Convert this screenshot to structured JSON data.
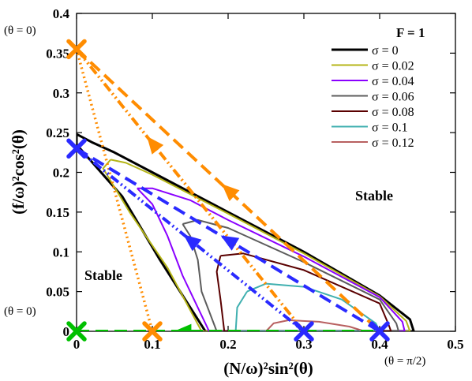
{
  "chart_data": {
    "type": "line",
    "title": "",
    "xlabel": "(N/ω)²sin²(θ)",
    "ylabel": "(f/ω)²cos²(θ)",
    "xlim": [
      0,
      0.5
    ],
    "ylim": [
      0,
      0.4
    ],
    "x_ticks": [
      "0",
      "0.1",
      "0.2",
      "0.3",
      "0.4",
      "0.5"
    ],
    "y_ticks": [
      "0",
      "0.05",
      "0.1",
      "0.15",
      "0.2",
      "0.25",
      "0.3",
      "0.35",
      "0.4"
    ],
    "x_tick_values": [
      0,
      0.1,
      0.2,
      0.3,
      0.4,
      0.5
    ],
    "y_tick_values": [
      0,
      0.05,
      0.1,
      0.15,
      0.2,
      0.25,
      0.3,
      0.35,
      0.4
    ],
    "legend_title": "F = 1",
    "legend_position": "top-right",
    "series": [
      {
        "name": "σ = 0",
        "color": "#000000",
        "points": [
          [
            0,
            0.248
          ],
          [
            0.02,
            0.238
          ],
          [
            0.05,
            0.225
          ],
          [
            0.1,
            0.2
          ],
          [
            0.2,
            0.15
          ],
          [
            0.3,
            0.1
          ],
          [
            0.4,
            0.045
          ],
          [
            0.44,
            0.015
          ],
          [
            0.445,
            0
          ],
          [
            0.17,
            0
          ],
          [
            0.11,
            0.09
          ],
          [
            0.06,
            0.17
          ],
          [
            0,
            0.235
          ],
          [
            0,
            0.248
          ]
        ]
      },
      {
        "name": "σ = 0.02",
        "color": "#b5b518",
        "points": [
          [
            0.045,
            0.216
          ],
          [
            0.065,
            0.212
          ],
          [
            0.1,
            0.197
          ],
          [
            0.2,
            0.148
          ],
          [
            0.3,
            0.098
          ],
          [
            0.4,
            0.044
          ],
          [
            0.435,
            0.013
          ],
          [
            0.44,
            0
          ],
          [
            0.165,
            0
          ],
          [
            0.12,
            0.08
          ],
          [
            0.07,
            0.15
          ],
          [
            0.035,
            0.205
          ],
          [
            0.045,
            0.216
          ]
        ]
      },
      {
        "name": "σ = 0.04",
        "color": "#8a00ff",
        "points": [
          [
            0.08,
            0.18
          ],
          [
            0.1,
            0.18
          ],
          [
            0.15,
            0.165
          ],
          [
            0.2,
            0.14
          ],
          [
            0.3,
            0.094
          ],
          [
            0.4,
            0.043
          ],
          [
            0.43,
            0.012
          ],
          [
            0.433,
            0
          ],
          [
            0.175,
            0
          ],
          [
            0.14,
            0.07
          ],
          [
            0.12,
            0.12
          ],
          [
            0.1,
            0.16
          ],
          [
            0.08,
            0.18
          ]
        ]
      },
      {
        "name": "σ = 0.06",
        "color": "#5c5c5c",
        "points": [
          [
            0.14,
            0.135
          ],
          [
            0.16,
            0.14
          ],
          [
            0.2,
            0.13
          ],
          [
            0.3,
            0.087
          ],
          [
            0.4,
            0.04
          ],
          [
            0.422,
            0.01
          ],
          [
            0.425,
            0
          ],
          [
            0.185,
            0
          ],
          [
            0.165,
            0.05
          ],
          [
            0.16,
            0.09
          ],
          [
            0.15,
            0.12
          ],
          [
            0.14,
            0.135
          ]
        ]
      },
      {
        "name": "σ = 0.08",
        "color": "#5a0000",
        "points": [
          [
            0.19,
            0.095
          ],
          [
            0.22,
            0.098
          ],
          [
            0.3,
            0.077
          ],
          [
            0.4,
            0.035
          ],
          [
            0.412,
            0.008
          ],
          [
            0.415,
            0
          ],
          [
            0.195,
            0
          ],
          [
            0.19,
            0.04
          ],
          [
            0.185,
            0.075
          ],
          [
            0.19,
            0.095
          ]
        ]
      },
      {
        "name": "σ = 0.1",
        "color": "#40b0b0",
        "points": [
          [
            0.225,
            0.05
          ],
          [
            0.25,
            0.06
          ],
          [
            0.3,
            0.056
          ],
          [
            0.35,
            0.04
          ],
          [
            0.395,
            0.01
          ],
          [
            0.4,
            0
          ],
          [
            0.21,
            0
          ],
          [
            0.212,
            0.03
          ],
          [
            0.225,
            0.05
          ]
        ]
      },
      {
        "name": "σ = 0.12",
        "color": "#b86060",
        "points": [
          [
            0.25,
            0
          ],
          [
            0.26,
            0.01
          ],
          [
            0.28,
            0.014
          ],
          [
            0.32,
            0.012
          ],
          [
            0.36,
            0.006
          ],
          [
            0.38,
            0
          ]
        ]
      }
    ],
    "trajectories": [
      {
        "color": "#ff8c00",
        "style": "dashed",
        "points": [
          [
            0,
            0.355
          ],
          [
            0.4,
            0
          ]
        ]
      },
      {
        "color": "#ff8c00",
        "style": "dash-dot-dot",
        "points": [
          [
            0,
            0.355
          ],
          [
            0.3,
            0
          ]
        ]
      },
      {
        "color": "#ff8c00",
        "style": "dotted",
        "points": [
          [
            0,
            0.355
          ],
          [
            0.1,
            0
          ]
        ]
      },
      {
        "color": "#2a2aff",
        "style": "dashed",
        "points": [
          [
            0,
            0.23
          ],
          [
            0.4,
            0
          ]
        ]
      },
      {
        "color": "#2a2aff",
        "style": "dash-dot-dot",
        "points": [
          [
            0,
            0.23
          ],
          [
            0.3,
            0
          ]
        ]
      },
      {
        "color": "#00c000",
        "style": "dashed",
        "points": [
          [
            0,
            0
          ],
          [
            0.4,
            0
          ]
        ]
      }
    ],
    "arrows": [
      {
        "color": "#ff8c00",
        "at": [
          0.2,
          0.178
        ],
        "direction": [
          -0.4,
          0.355
        ]
      },
      {
        "color": "#ff8c00",
        "at": [
          0.1,
          0.237
        ],
        "direction": [
          -0.3,
          0.355
        ]
      },
      {
        "color": "#2a2aff",
        "at": [
          0.2,
          0.115
        ],
        "direction": [
          -0.4,
          0.23
        ]
      },
      {
        "color": "#2a2aff",
        "at": [
          0.15,
          0.115
        ],
        "direction": [
          -0.3,
          0.23
        ]
      },
      {
        "color": "#00c000",
        "at": [
          0.14,
          0
        ],
        "direction": [
          -1,
          0
        ]
      }
    ],
    "markers": [
      {
        "color": "#ff8c00",
        "at": [
          0,
          0.355
        ]
      },
      {
        "color": "#ff8c00",
        "at": [
          0.1,
          0
        ]
      },
      {
        "color": "#2a2aff",
        "at": [
          0,
          0.23
        ]
      },
      {
        "color": "#2a2aff",
        "at": [
          0.3,
          0
        ]
      },
      {
        "color": "#2a2aff",
        "at": [
          0.4,
          0
        ]
      },
      {
        "color": "#00c000",
        "at": [
          0,
          0
        ]
      }
    ],
    "annotations": {
      "stable_right": "Stable",
      "stable_left": "Stable",
      "theta_top": "(θ = 0)",
      "theta_left": "(θ = 0)",
      "theta_right": "(θ = π/2)"
    }
  }
}
